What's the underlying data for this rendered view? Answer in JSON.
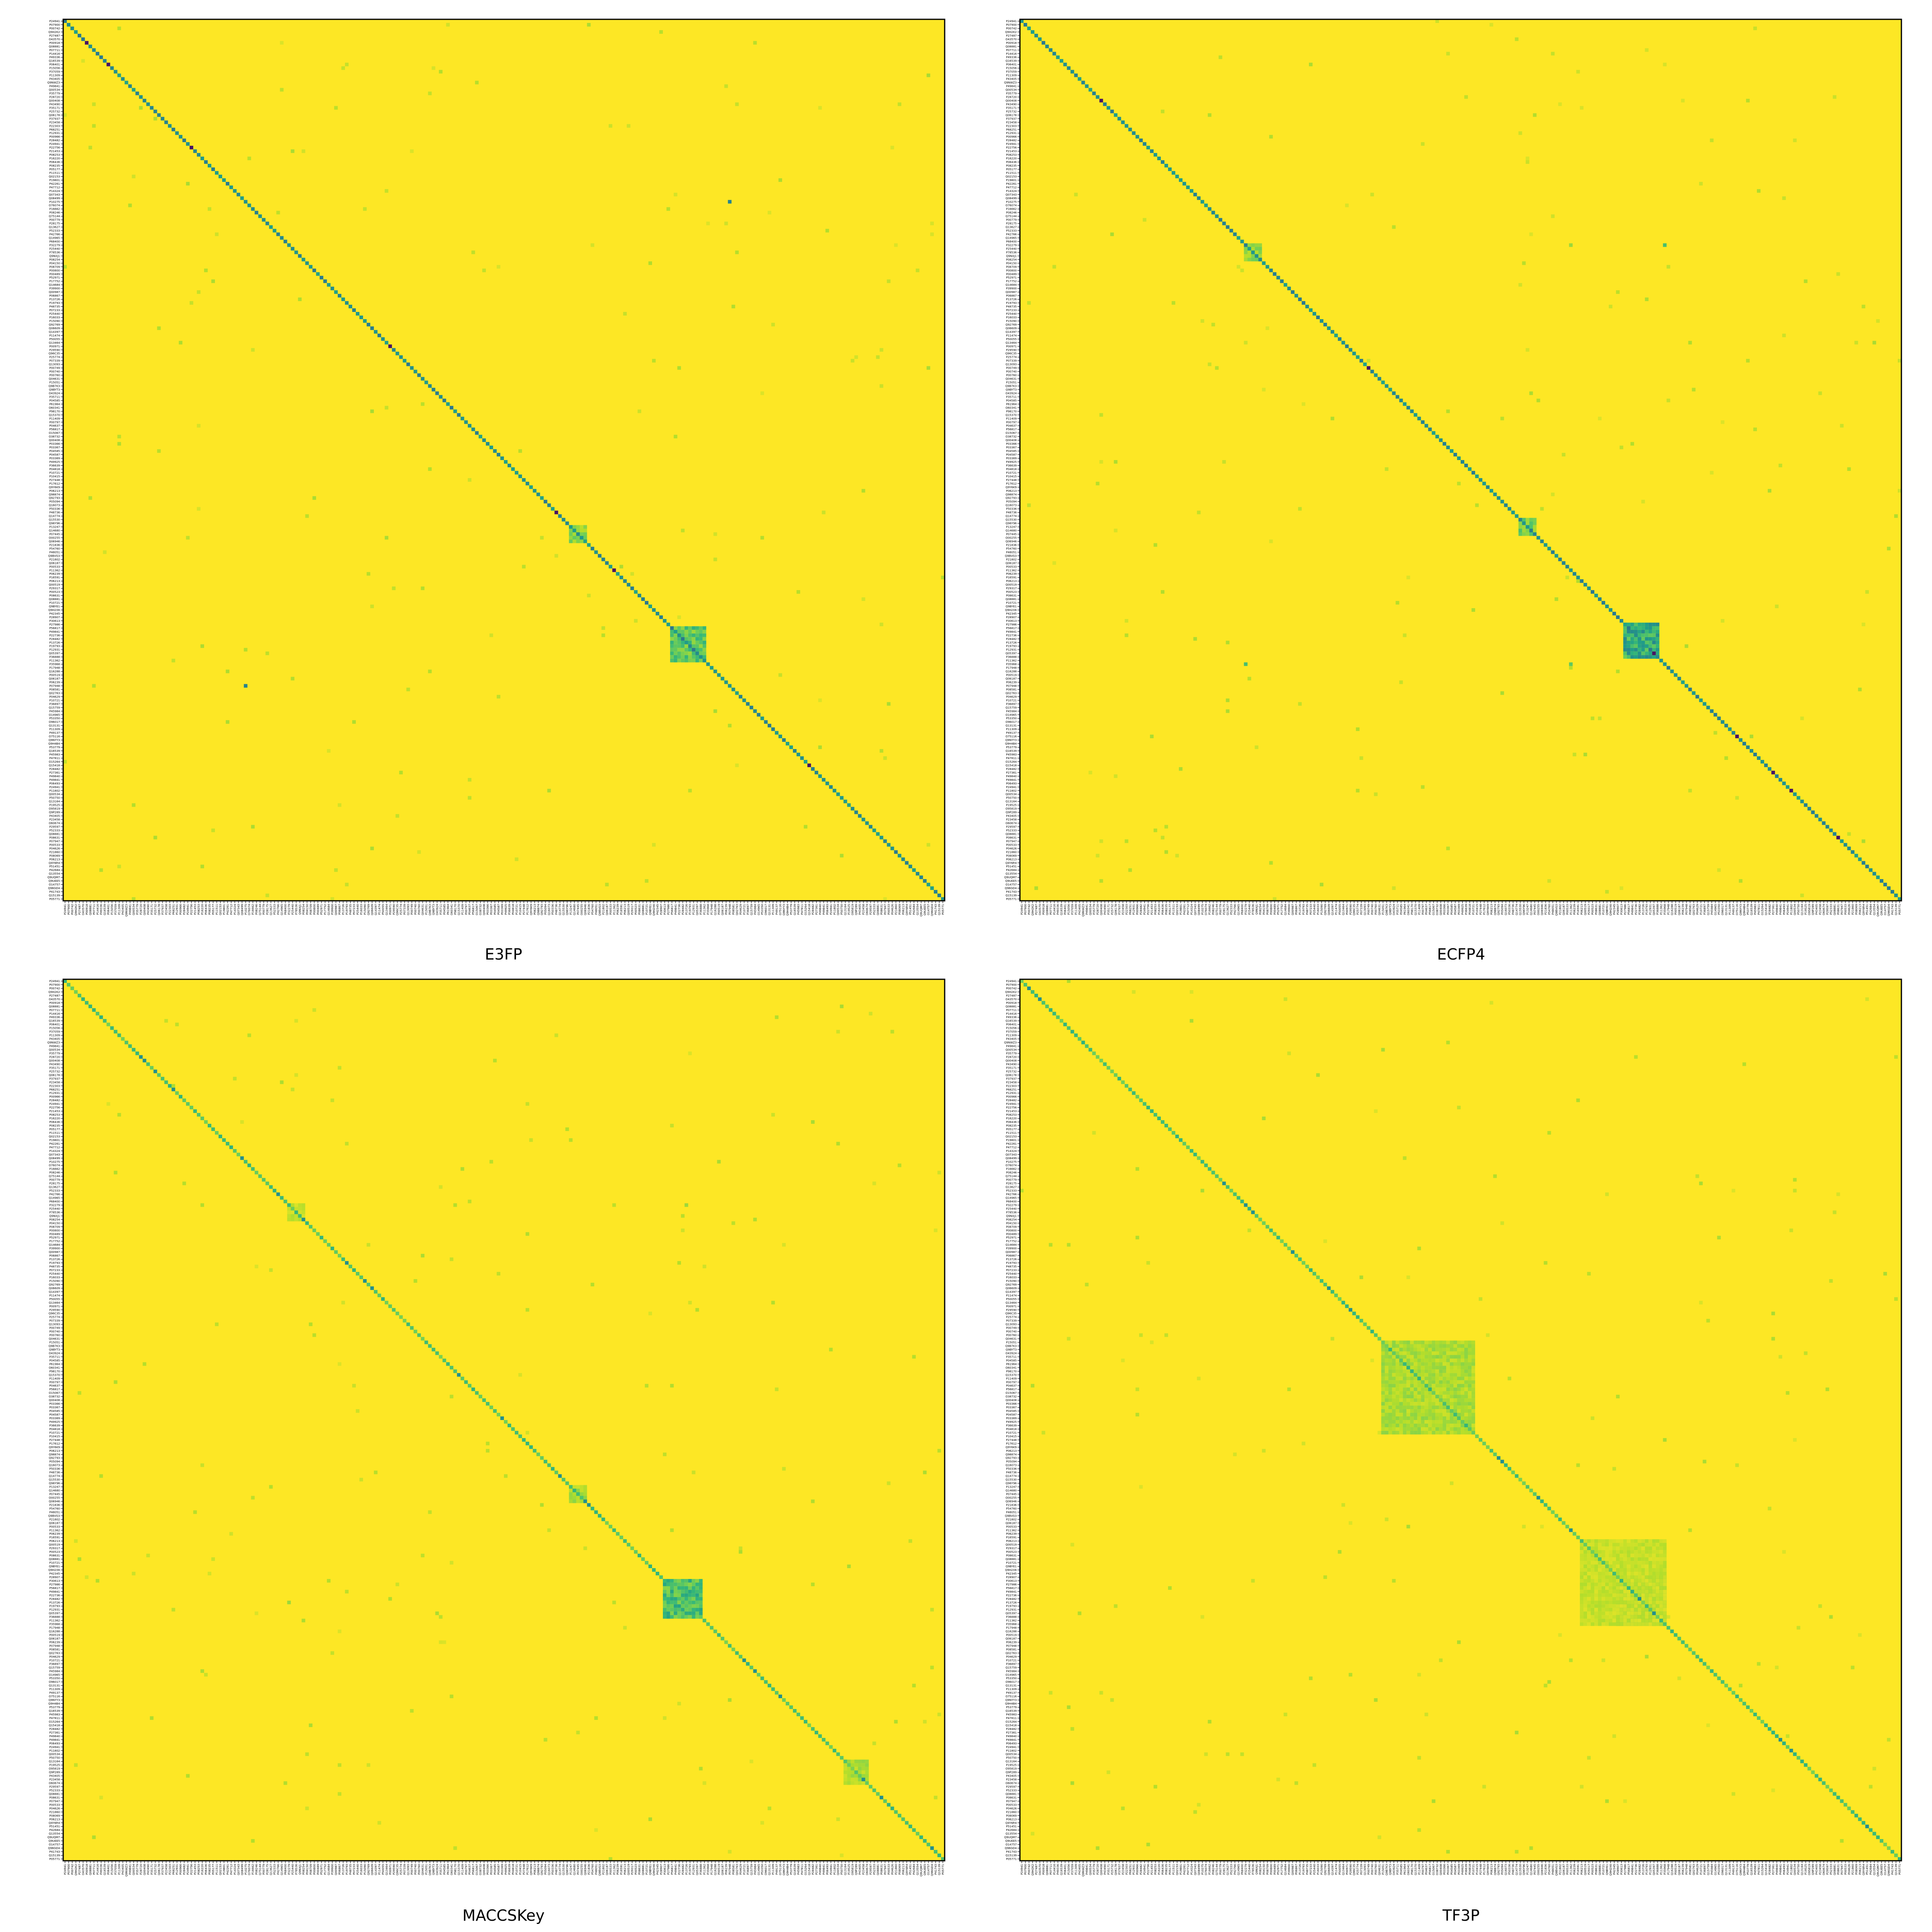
{
  "figure": {
    "layout": "2x2 grid of square heatmaps",
    "colormap": "viridis",
    "background_color": "#FDE725",
    "colormap_stops": [
      "#FDE725",
      "#B5DE2B",
      "#6ECE58",
      "#35B779",
      "#1F9E89",
      "#26828E",
      "#31688E",
      "#3E4989",
      "#482878",
      "#440154"
    ]
  },
  "chart_data": [
    {
      "type": "heatmap",
      "title": "E3FP",
      "diagonal": "strong",
      "block_regions": [
        {
          "rows": [
            168,
            177
          ],
          "cols": [
            168,
            177
          ],
          "intensity": 0.3
        },
        {
          "rows": [
            140,
            144
          ],
          "cols": [
            140,
            144
          ],
          "intensity": 0.2
        }
      ],
      "extra_points": [
        {
          "row": 50,
          "col": 184,
          "intensity": 0.55
        },
        {
          "row": 184,
          "col": 50,
          "intensity": 0.55
        }
      ]
    },
    {
      "type": "heatmap",
      "title": "ECFP4",
      "diagonal": "strong",
      "block_regions": [
        {
          "rows": [
            167,
            176
          ],
          "cols": [
            167,
            176
          ],
          "intensity": 0.45
        },
        {
          "rows": [
            138,
            142
          ],
          "cols": [
            138,
            142
          ],
          "intensity": 0.25
        },
        {
          "rows": [
            62,
            66
          ],
          "cols": [
            62,
            66
          ],
          "intensity": 0.2
        }
      ],
      "extra_points": [
        {
          "row": 62,
          "col": 178,
          "intensity": 0.3
        },
        {
          "row": 178,
          "col": 62,
          "intensity": 0.3
        },
        {
          "row": 62,
          "col": 152,
          "intensity": 0.15
        },
        {
          "row": 178,
          "col": 152,
          "intensity": 0.25
        }
      ]
    },
    {
      "type": "heatmap",
      "title": "MACCSKey",
      "diagonal": "weak",
      "block_regions": [
        {
          "rows": [
            166,
            176
          ],
          "cols": [
            166,
            176
          ],
          "intensity": 0.35
        },
        {
          "rows": [
            216,
            222
          ],
          "cols": [
            216,
            222
          ],
          "intensity": 0.15
        },
        {
          "rows": [
            140,
            144
          ],
          "cols": [
            140,
            144
          ],
          "intensity": 0.15
        },
        {
          "rows": [
            62,
            66
          ],
          "cols": [
            62,
            66
          ],
          "intensity": 0.1
        }
      ],
      "extra_points": [
        {
          "row": 62,
          "col": 172,
          "intensity": 0.15
        },
        {
          "row": 172,
          "col": 62,
          "intensity": 0.15
        },
        {
          "row": 62,
          "col": 152,
          "intensity": 0.1
        },
        {
          "row": 172,
          "col": 152,
          "intensity": 0.1
        }
      ]
    },
    {
      "type": "heatmap",
      "title": "TF3P",
      "diagonal": "weak",
      "block_regions": [
        {
          "rows": [
            165,
            178
          ],
          "cols": [
            165,
            178
          ],
          "intensity": 0.45
        },
        {
          "rows": [
            100,
            125
          ],
          "cols": [
            100,
            125
          ],
          "intensity": 0.15
        },
        {
          "rows": [
            155,
            178
          ],
          "cols": [
            155,
            178
          ],
          "intensity": 0.1
        }
      ],
      "extra_points": []
    }
  ],
  "ticks": [
    "P24941",
    "P07900",
    "P00742",
    "Q9H2K2",
    "P27487",
    "O43570",
    "P00918",
    "Q08881",
    "P07711",
    "P14416",
    "P49336",
    "Q16539",
    "P06401",
    "P15056",
    "P37059",
    "P11309",
    "P43405",
    "Q9NWZ3",
    "P49841",
    "Q00534",
    "P35779",
    "P28720",
    "Q00408",
    "P43490",
    "P35171",
    "P25732",
    "Q06178",
    "P37937",
    "P23458",
    "P22303",
    "P68251",
    "P12931",
    "P00966",
    "P28482",
    "P24941",
    "P22756",
    "P21453",
    "P08253",
    "P16220",
    "P06436",
    "P08235",
    "P05177",
    "P11511",
    "Q02153",
    "P19801",
    "P42261",
    "P47712",
    "P14324",
    "Q07343",
    "Q08499",
    "P10275",
    "O76074",
    "P16662",
    "P08246",
    "Q75144",
    "P00779",
    "P28175",
    "Q13627",
    "P52333",
    "P42766",
    "Q14965",
    "P68400",
    "P32279",
    "P25440",
    "P78536",
    "Q9NXJ1",
    "P08254",
    "P04150",
    "P08709",
    "P00800",
    "P00489",
    "P52971",
    "P17752",
    "Q14684",
    "P39900",
    "Q00987",
    "P06867",
    "P13726",
    "P19793",
    "P48735",
    "P07233",
    "P25440",
    "P16033",
    "P15090",
    "Q92769",
    "Q06609",
    "Q14397",
    "P11474",
    "P50055",
    "Q13464",
    "P00971",
    "P29590",
    "Q96C35",
    "P25774",
    "P07339",
    "Q13093",
    "P00749",
    "P00740",
    "P00760",
    "Q04631",
    "P15051",
    "Q9B7K3",
    "Q9BYT3",
    "O43924",
    "P35711",
    "P04585",
    "P61964",
    "O60341",
    "P98170",
    "Q15370",
    "P11409",
    "P00797",
    "P04637",
    "P56817",
    "O15067",
    "O38732",
    "Q00408",
    "P03366",
    "P03367",
    "P04585",
    "P04587",
    "P03369",
    "P49925",
    "P36639",
    "P04818",
    "P10721",
    "P10415",
    "P27448",
    "P17612",
    "Q9Y6K9",
    "P06213",
    "Q98874",
    "Q92793",
    "P05094",
    "Q16073",
    "P50336",
    "P48736",
    "Q14774",
    "Q15530",
    "Q96Y96",
    "P13247",
    "Q14680",
    "P07445",
    "O00255",
    "Q06946",
    "P21836",
    "P54760",
    "P48051",
    "Q9BVG3",
    "P21802",
    "Q06187",
    "P00533",
    "P11362",
    "P06239",
    "P16591",
    "P06213",
    "Q00519",
    "P29317",
    "P00523",
    "P08631",
    "Q08881",
    "P10721",
    "Q9BYE1",
    "Q9H2X6",
    "P42345",
    "P28907",
    "P30613",
    "P27986",
    "P56817",
    "P49841",
    "P22736",
    "P28482",
    "P13726",
    "P19793",
    "P12931",
    "Q05397",
    "P36888",
    "P11362",
    "P35968",
    "P17948",
    "Q16288",
    "P00519",
    "Q06187",
    "P06239",
    "P07948",
    "P08581",
    "Q02763",
    "P04629",
    "P10721",
    "P36897",
    "Q15759",
    "P45984",
    "O14965",
    "P53350",
    "O96017",
    "Q13131",
    "P11309",
    "P49137",
    "O75116",
    "Q9NYY3",
    "Q9H4B4",
    "P53779",
    "Q16539",
    "P45983",
    "P47811",
    "O15264",
    "Q15418",
    "P28482",
    "P27361",
    "P49840",
    "P49841",
    "P06493",
    "P24941",
    "P11802",
    "Q00534",
    "P50750",
    "Q13164",
    "P19525",
    "O95819",
    "Q9P289",
    "P43405",
    "P23458",
    "O60674",
    "P29597",
    "P52333",
    "Q08881",
    "P08631",
    "P07947",
    "P00533",
    "P04626",
    "P21860",
    "P08069",
    "P06213",
    "Q9Y6R4",
    "P51451",
    "P42684",
    "Q13554",
    "Q9UQM7",
    "Q9UEE5",
    "O14757",
    "Q96GD4",
    "P41743",
    "Q15139",
    "P05771"
  ]
}
